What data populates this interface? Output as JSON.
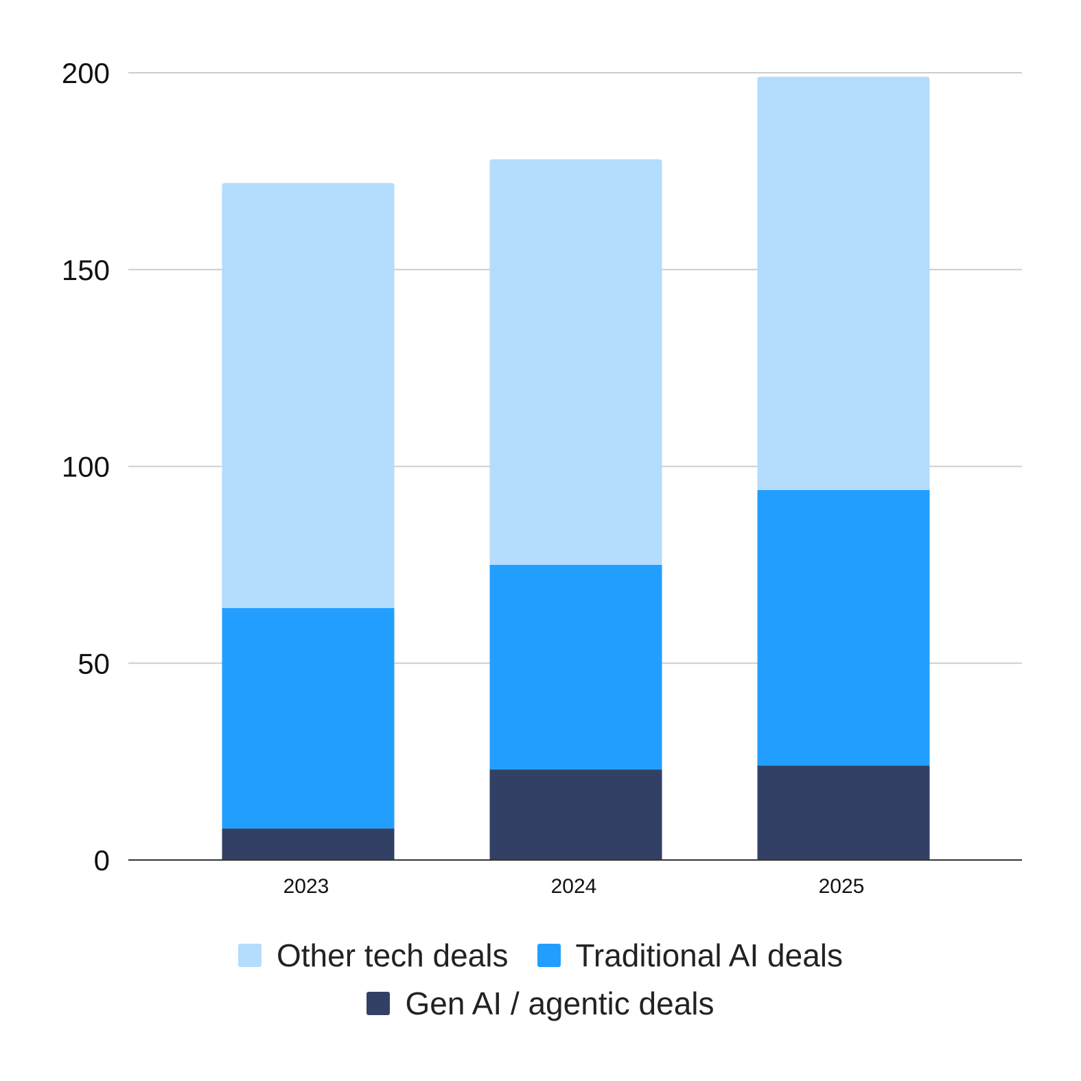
{
  "chart_data": {
    "type": "bar",
    "stacked": true,
    "title": "",
    "xlabel": "",
    "ylabel": "",
    "categories": [
      "2023",
      "2024",
      "2025"
    ],
    "series": [
      {
        "name": "Gen AI / agentic deals",
        "color": "#334066",
        "values": [
          8,
          23,
          24
        ]
      },
      {
        "name": "Traditional AI deals",
        "color": "#229ffe",
        "values": [
          56,
          52,
          70
        ]
      },
      {
        "name": "Other tech deals",
        "color": "#b3dcfd",
        "values": [
          108,
          103,
          105
        ]
      }
    ],
    "ylim": [
      0,
      200
    ],
    "yticks": [
      "0",
      "50",
      "100",
      "150",
      "200"
    ],
    "grid": true,
    "legend_position": "bottom",
    "legend_order": [
      "Other tech deals",
      "Traditional AI deals",
      "Gen AI / agentic deals"
    ]
  }
}
